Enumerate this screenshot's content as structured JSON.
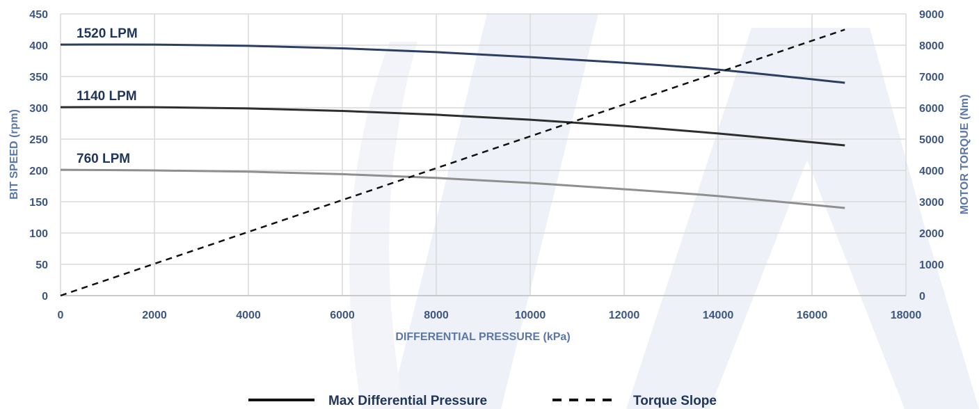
{
  "colors": {
    "axis_text": "#3d5680",
    "axis_title": "#5b77a8",
    "label_text": "#1f3559",
    "gridline": "#d9d9d9",
    "watermark": "#eef1f7"
  },
  "legend": {
    "solid_label": "Max Differential Pressure",
    "dashed_label": "Torque Slope"
  },
  "chart_data": {
    "type": "line",
    "xlabel": "DIFFERENTIAL PRESSURE (kPa)",
    "ylabel": "BIT SPEED (rpm)",
    "y2label": "MOTOR TORQUE (Nm)",
    "xlim": [
      0,
      18000
    ],
    "ylim": [
      0,
      450
    ],
    "y2lim": [
      0,
      9000
    ],
    "xticks": [
      "0",
      "2000",
      "4000",
      "6000",
      "8000",
      "10000",
      "12000",
      "14000",
      "16000",
      "18000"
    ],
    "yticks": [
      "0",
      "50",
      "100",
      "150",
      "200",
      "250",
      "300",
      "350",
      "400",
      "450"
    ],
    "y2ticks": [
      "0",
      "1000",
      "2000",
      "3000",
      "4000",
      "5000",
      "6000",
      "7000",
      "8000",
      "9000"
    ],
    "grid": true,
    "legend_position": "bottom",
    "series": [
      {
        "name": "1520 LPM",
        "axis": "left",
        "style": "solid",
        "color": "#2b3f63",
        "x": [
          0,
          2000,
          4000,
          6000,
          8000,
          10000,
          12000,
          14000,
          16700
        ],
        "y": [
          401,
          401,
          399,
          395,
          389,
          381,
          372,
          361,
          340
        ]
      },
      {
        "name": "1140 LPM",
        "axis": "left",
        "style": "solid",
        "color": "#2e2e2e",
        "x": [
          0,
          2000,
          4000,
          6000,
          8000,
          10000,
          12000,
          14000,
          16700
        ],
        "y": [
          301,
          301,
          299,
          295,
          289,
          281,
          271,
          259,
          240
        ]
      },
      {
        "name": "760 LPM",
        "axis": "left",
        "style": "solid",
        "color": "#8f8f8f",
        "x": [
          0,
          2000,
          4000,
          6000,
          8000,
          10000,
          12000,
          14000,
          16700
        ],
        "y": [
          201,
          200,
          198,
          194,
          188,
          180,
          170,
          159,
          140
        ]
      },
      {
        "name": "Torque Slope",
        "axis": "right",
        "style": "dashed",
        "color": "#111111",
        "x": [
          0,
          16700
        ],
        "y": [
          0,
          8500
        ]
      }
    ]
  }
}
